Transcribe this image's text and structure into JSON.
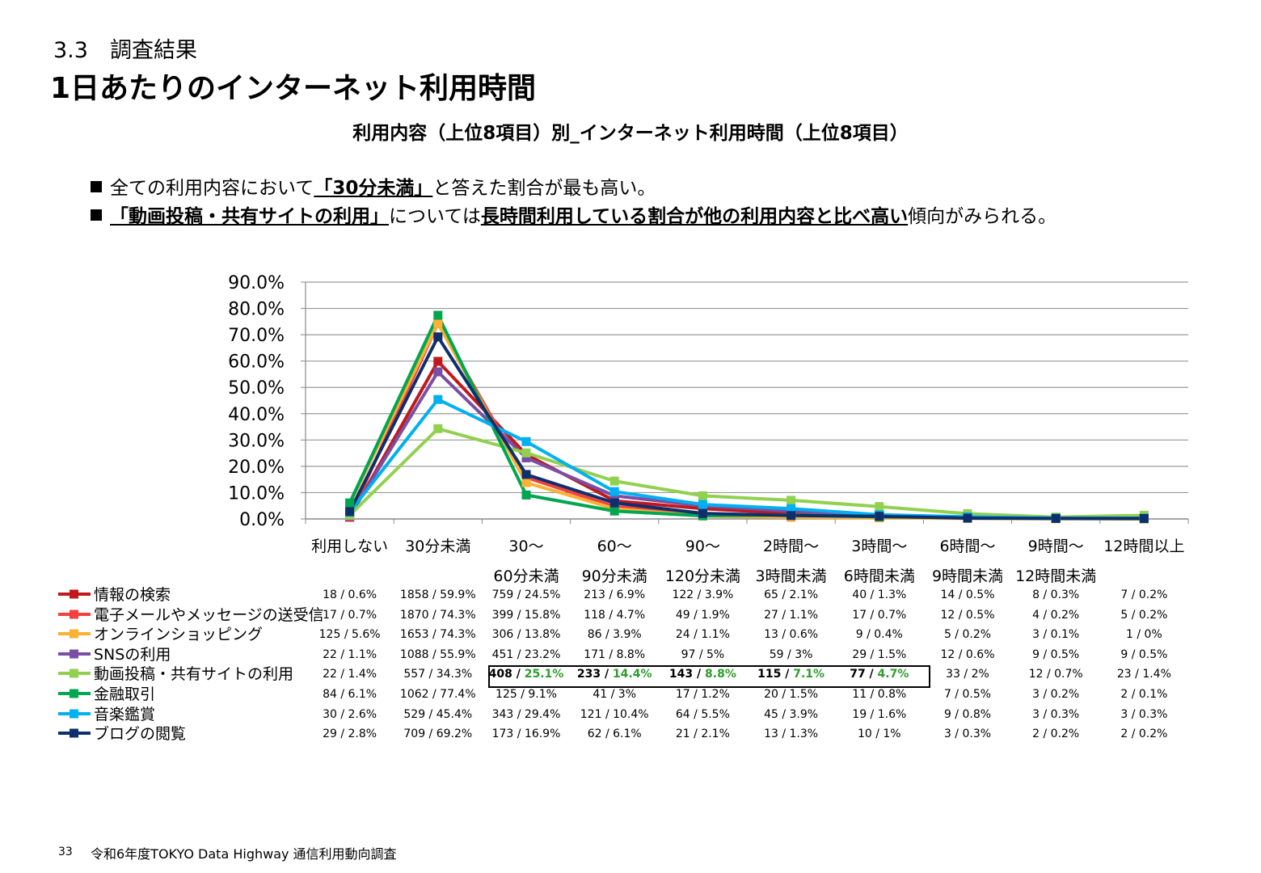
{
  "header": {
    "section": "3.3　調査結果",
    "title": "1日あたりのインターネット利用時間",
    "subtitle": "利用内容（上位8項目）別_インターネット利用時間（上位8項目）"
  },
  "bullets": [
    {
      "pre": "全ての利用内容において",
      "em": "「30分未満」",
      "post": "と答えた割合が最も高い。"
    },
    {
      "pre": "",
      "em": "「動画投稿・共有サイトの利用」",
      "mid": "については",
      "em2": "長時間利用している割合が他の利用内容と比べ高い",
      "post": "傾向がみられる。"
    }
  ],
  "chart_data": {
    "type": "line",
    "categories": [
      "利用しない",
      "30分未満",
      "30〜\n60分未満",
      "60〜\n90分未満",
      "90〜\n120分未満",
      "2時間〜\n3時間未満",
      "3時間〜\n6時間未満",
      "6時間〜\n9時間未満",
      "9時間〜\n12時間未満",
      "12時間以上"
    ],
    "ylim": [
      0,
      90
    ],
    "yticks": [
      "0.0%",
      "10.0%",
      "20.0%",
      "30.0%",
      "40.0%",
      "50.0%",
      "60.0%",
      "70.0%",
      "80.0%",
      "90.0%"
    ],
    "grid": true,
    "series": [
      {
        "name": "情報の検索",
        "color": "#c0191c",
        "values": [
          0.6,
          59.9,
          24.5,
          6.9,
          3.9,
          2.1,
          1.3,
          0.5,
          0.3,
          0.2
        ],
        "labels": [
          "18 / 0.6%",
          "1858 / 59.9%",
          "759 / 24.5%",
          "213 / 6.9%",
          "122 / 3.9%",
          "65 / 2.1%",
          "40 / 1.3%",
          "14 / 0.5%",
          "8 / 0.3%",
          "7 / 0.2%"
        ]
      },
      {
        "name": "電子メールやメッセージの送受信",
        "color": "#f2413f",
        "values": [
          0.7,
          74.3,
          15.8,
          4.7,
          1.9,
          1.1,
          0.7,
          0.5,
          0.2,
          0.2
        ],
        "labels": [
          "17 / 0.7%",
          "1870 / 74.3%",
          "399 / 15.8%",
          "118 / 4.7%",
          "49 / 1.9%",
          "27 / 1.1%",
          "17 / 0.7%",
          "12 / 0.5%",
          "4 / 0.2%",
          "5 / 0.2%"
        ]
      },
      {
        "name": "オンラインショッピング",
        "color": "#f9b233",
        "values": [
          5.6,
          74.3,
          13.8,
          3.9,
          1.1,
          0.6,
          0.4,
          0.2,
          0.1,
          0
        ],
        "labels": [
          "125 / 5.6%",
          "1653 / 74.3%",
          "306 / 13.8%",
          "86 / 3.9%",
          "24 / 1.1%",
          "13 / 0.6%",
          "9 / 0.4%",
          "5 / 0.2%",
          "3 / 0.1%",
          "1 / 0%"
        ]
      },
      {
        "name": "SNSの利用",
        "color": "#7b4ea6",
        "values": [
          1.1,
          55.9,
          23.2,
          8.8,
          5,
          3,
          1.5,
          0.6,
          0.5,
          0.5
        ],
        "labels": [
          "22 / 1.1%",
          "1088 / 55.9%",
          "451 / 23.2%",
          "171 / 8.8%",
          "97 / 5%",
          "59 / 3%",
          "29 / 1.5%",
          "12 / 0.6%",
          "9 / 0.5%",
          "9 / 0.5%"
        ]
      },
      {
        "name": "動画投稿・共有サイトの利用",
        "color": "#92d050",
        "values": [
          1.4,
          34.3,
          25.1,
          14.4,
          8.8,
          7.1,
          4.7,
          2,
          0.7,
          1.4
        ],
        "labels": [
          "22 / 1.4%",
          "557 / 34.3%",
          "408 / 25.1%",
          "233 / 14.4%",
          "143 / 8.8%",
          "115 / 7.1%",
          "77 / 4.7%",
          "33 / 2%",
          "12 / 0.7%",
          "23 / 1.4%"
        ]
      },
      {
        "name": "金融取引",
        "color": "#00a650",
        "values": [
          6.1,
          77.4,
          9.1,
          3,
          1.2,
          1.5,
          0.8,
          0.5,
          0.2,
          0.1
        ],
        "labels": [
          "84 / 6.1%",
          "1062 / 77.4%",
          "125 / 9.1%",
          "41 / 3%",
          "17 / 1.2%",
          "20 / 1.5%",
          "11 / 0.8%",
          "7 / 0.5%",
          "3 / 0.2%",
          "2 / 0.1%"
        ]
      },
      {
        "name": "音楽鑑賞",
        "color": "#00b0f0",
        "values": [
          2.6,
          45.4,
          29.4,
          10.4,
          5.5,
          3.9,
          1.6,
          0.8,
          0.3,
          0.3
        ],
        "labels": [
          "30 / 2.6%",
          "529 / 45.4%",
          "343 / 29.4%",
          "121 / 10.4%",
          "64 / 5.5%",
          "45 / 3.9%",
          "19 / 1.6%",
          "9 / 0.8%",
          "3 / 0.3%",
          "3 / 0.3%"
        ]
      },
      {
        "name": "ブログの閲覧",
        "color": "#0e2f6e",
        "values": [
          2.8,
          69.2,
          16.9,
          6.1,
          2.1,
          1.3,
          1,
          0.3,
          0.2,
          0.2
        ],
        "labels": [
          "29 / 2.8%",
          "709 / 69.2%",
          "173 / 16.9%",
          "62 / 6.1%",
          "21 / 2.1%",
          "13 / 1.3%",
          "10 / 1%",
          "3 / 0.3%",
          "2 / 0.2%",
          "2 / 0.2%"
        ]
      }
    ],
    "highlight": {
      "series": 4,
      "from": 2,
      "to": 6
    }
  },
  "footer": {
    "page": "33",
    "text": "令和6年度TOKYO Data Highway 通信利用動向調査"
  }
}
